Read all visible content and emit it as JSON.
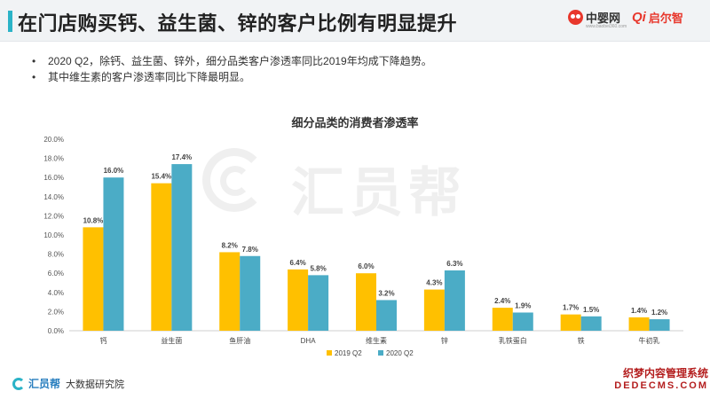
{
  "header": {
    "title": "在门店购买钙、益生菌、锌的客户比例有明显提升",
    "logos": [
      {
        "name": "中婴网",
        "subtitle": "www.baobei360.com"
      },
      {
        "name": "启尔智",
        "mark": "Qi"
      }
    ],
    "accent_color": "#2bb3c7"
  },
  "bullets": [
    "2020 Q2，除钙、益生菌、锌外，细分品类客户渗透率同比2019年均成下降趋势。",
    "其中维生素的客户渗透率同比下降最明显。"
  ],
  "watermark": "汇员帮",
  "footer": {
    "brand": "汇员帮",
    "subtitle": "大数据研究院"
  },
  "corner_watermark": {
    "line1": "织梦内容管理系统",
    "line2": "DEDECMS.COM"
  },
  "chart_data": {
    "type": "bar",
    "title": "细分品类的消费者渗透率",
    "categories": [
      "钙",
      "益生菌",
      "鱼肝油",
      "DHA",
      "维生素",
      "锌",
      "乳铁蛋白",
      "铁",
      "牛初乳"
    ],
    "series": [
      {
        "name": "2019 Q2",
        "color": "#ffc000",
        "values": [
          10.8,
          15.4,
          8.2,
          6.4,
          6.0,
          4.3,
          2.4,
          1.7,
          1.4
        ]
      },
      {
        "name": "2020 Q2",
        "color": "#4bacc6",
        "values": [
          16.0,
          17.4,
          7.8,
          5.8,
          3.2,
          6.3,
          1.9,
          1.5,
          1.2
        ]
      }
    ],
    "ylim": [
      0,
      20
    ],
    "ytick_step": 2,
    "value_format": "percent_1dp",
    "grid": false,
    "legend": "bottom"
  }
}
